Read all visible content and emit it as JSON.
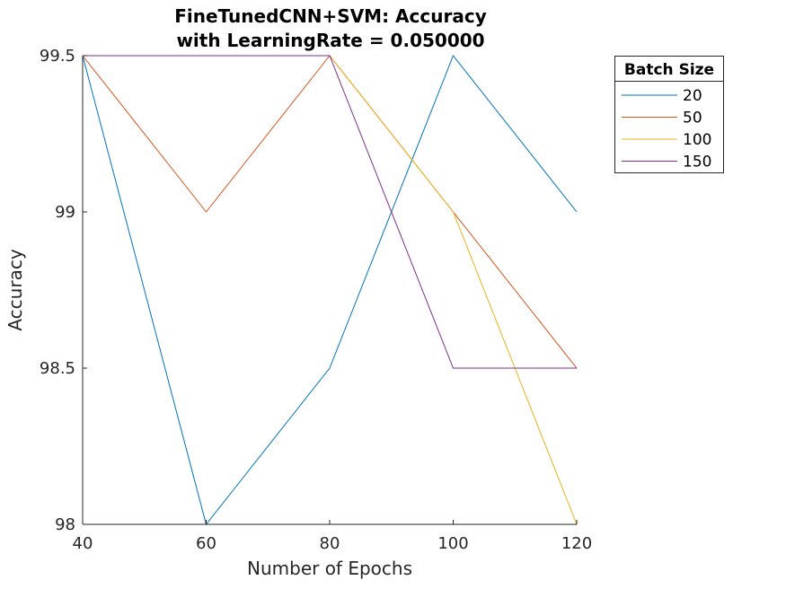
{
  "chart_data": {
    "type": "line",
    "title": [
      "FineTunedCNN+SVM: Accuracy",
      "with LearningRate = 0.050000"
    ],
    "xlabel": "Number of Epochs",
    "ylabel": "Accuracy",
    "x": [
      40,
      60,
      80,
      100,
      120
    ],
    "xlim": [
      40,
      120
    ],
    "ylim": [
      98,
      99.5
    ],
    "xticks": [
      40,
      60,
      80,
      100,
      120
    ],
    "yticks": [
      98,
      98.5,
      99,
      99.5
    ],
    "xtick_labels": [
      "40",
      "60",
      "80",
      "100",
      "120"
    ],
    "ytick_labels": [
      "98",
      "98.5",
      "99",
      "99.5"
    ],
    "grid": false,
    "legend": {
      "title": "Batch Size",
      "placement": "outside-top-right"
    },
    "series": [
      {
        "name": "20",
        "color": "#0072BD",
        "values": [
          99.5,
          98,
          98.5,
          99.5,
          99
        ]
      },
      {
        "name": "50",
        "color": "#D95319",
        "values": [
          99.5,
          99,
          99.5,
          99,
          98.5
        ]
      },
      {
        "name": "100",
        "color": "#EDB120",
        "values": [
          99.5,
          99.5,
          99.5,
          99,
          98
        ]
      },
      {
        "name": "150",
        "color": "#7E2F8E",
        "values": [
          99.5,
          99.5,
          99.5,
          98.5,
          98.5
        ]
      }
    ]
  }
}
